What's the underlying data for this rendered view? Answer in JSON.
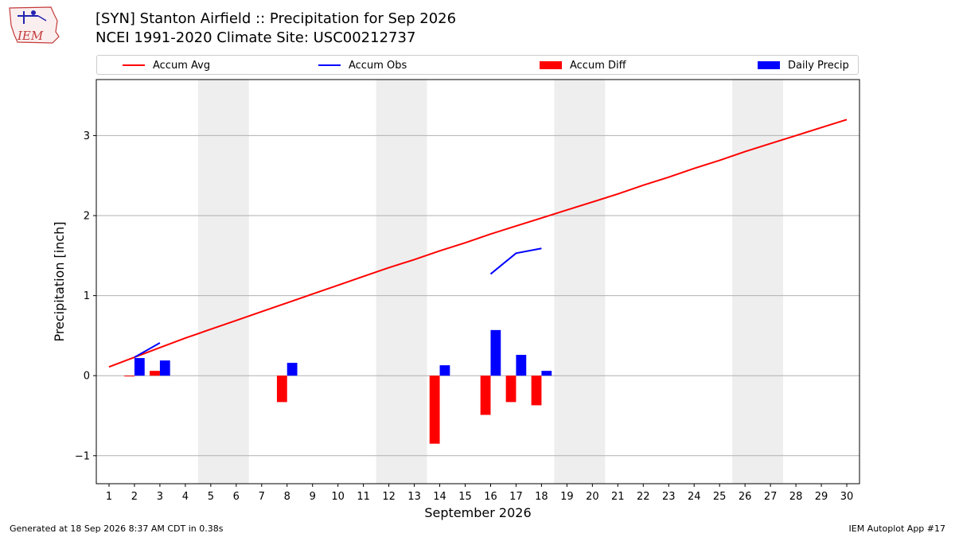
{
  "header": {
    "logo_text": "IEM",
    "title": "[SYN] Stanton Airfield :: Precipitation for Sep 2026",
    "subtitle": "NCEI 1991-2020 Climate Site: USC00212737"
  },
  "legend": [
    {
      "label": "Accum Avg",
      "kind": "line",
      "color": "#ff0000"
    },
    {
      "label": "Accum Obs",
      "kind": "line",
      "color": "#0000ff"
    },
    {
      "label": "Accum Diff",
      "kind": "box",
      "color": "#ff0000"
    },
    {
      "label": "Daily Precip",
      "kind": "box",
      "color": "#0000ff"
    }
  ],
  "footer": {
    "left": "Generated at 18 Sep 2026 8:37 AM CDT in 0.38s",
    "right": "IEM Autoplot App #17"
  },
  "chart_data": {
    "type": "bar",
    "ylabel": "Precipitation [inch]",
    "xlabel": "September 2026",
    "ylim": [
      -1.35,
      3.7
    ],
    "yticks": [
      -1,
      0,
      1,
      2,
      3
    ],
    "ytick_labels": [
      "−1",
      "0",
      "1",
      "2",
      "3"
    ],
    "xlim": [
      0.5,
      30.5
    ],
    "x": [
      1,
      2,
      3,
      4,
      5,
      6,
      7,
      8,
      9,
      10,
      11,
      12,
      13,
      14,
      15,
      16,
      17,
      18,
      19,
      20,
      21,
      22,
      23,
      24,
      25,
      26,
      27,
      28,
      29,
      30
    ],
    "weekend_bands": [
      [
        4.5,
        6.5
      ],
      [
        11.5,
        13.5
      ],
      [
        18.5,
        20.5
      ],
      [
        25.5,
        27.5
      ]
    ],
    "grid": "y",
    "series": [
      {
        "name": "Accum Avg",
        "kind": "line",
        "color": "#ff0000",
        "x": [
          1,
          2,
          3,
          4,
          5,
          6,
          7,
          8,
          9,
          10,
          11,
          12,
          13,
          14,
          15,
          16,
          17,
          18,
          19,
          20,
          21,
          22,
          23,
          24,
          25,
          26,
          27,
          28,
          29,
          30
        ],
        "values": [
          0.11,
          0.23,
          0.35,
          0.47,
          0.58,
          0.69,
          0.8,
          0.91,
          1.02,
          1.13,
          1.24,
          1.35,
          1.45,
          1.56,
          1.66,
          1.77,
          1.87,
          1.97,
          2.07,
          2.17,
          2.27,
          2.38,
          2.48,
          2.59,
          2.69,
          2.8,
          2.9,
          3.0,
          3.1,
          3.2
        ]
      },
      {
        "name": "Accum Obs",
        "kind": "line",
        "color": "#0000ff",
        "segments": [
          {
            "x": [
              2,
              3
            ],
            "values": [
              0.23,
              0.41
            ]
          },
          {
            "x": [
              16,
              17,
              18
            ],
            "values": [
              1.27,
              1.53,
              1.59
            ]
          }
        ]
      },
      {
        "name": "Accum Diff",
        "kind": "bar",
        "color": "#ff0000",
        "offset": -0.2,
        "x": [
          2,
          3,
          8,
          14,
          16,
          17,
          18
        ],
        "values": [
          -0.01,
          0.06,
          -0.33,
          -0.85,
          -0.49,
          -0.33,
          -0.37
        ]
      },
      {
        "name": "Daily Precip",
        "kind": "bar",
        "color": "#0000ff",
        "offset": 0.2,
        "x": [
          2,
          3,
          8,
          14,
          16,
          17,
          18
        ],
        "values": [
          0.22,
          0.19,
          0.16,
          0.13,
          0.57,
          0.26,
          0.06
        ]
      }
    ]
  }
}
